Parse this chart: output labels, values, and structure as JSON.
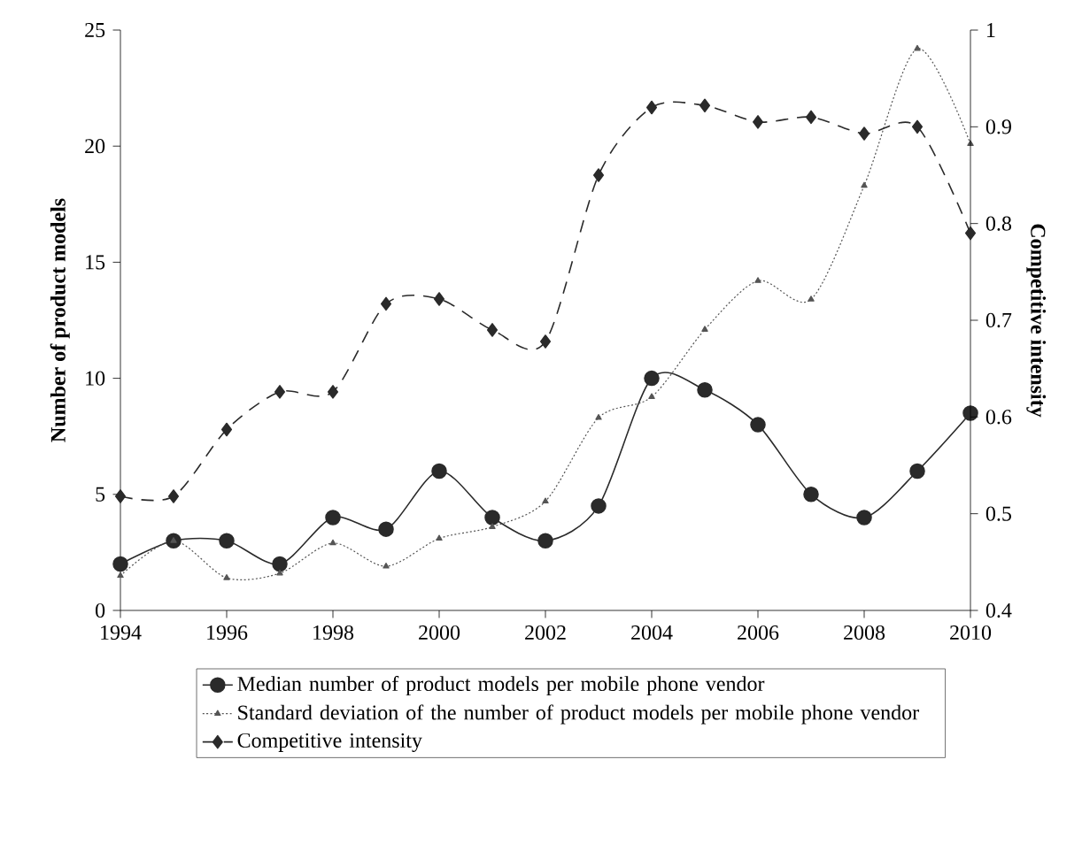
{
  "chart_data": {
    "type": "line",
    "ylabel": "Number of product models",
    "y2label": "Competitive intensity",
    "x": [
      1994,
      1995,
      1996,
      1997,
      1998,
      1999,
      2000,
      2001,
      2002,
      2003,
      2004,
      2005,
      2006,
      2007,
      2008,
      2009,
      2010
    ],
    "xlim": [
      1994,
      2010
    ],
    "xticks": [
      1994,
      1996,
      1998,
      2000,
      2002,
      2004,
      2006,
      2008,
      2010
    ],
    "ylim": [
      0,
      25
    ],
    "yticks": [
      0,
      5,
      10,
      15,
      20,
      25
    ],
    "y2lim": [
      0.4,
      1
    ],
    "y2ticks": [
      0.4,
      0.5,
      0.6,
      0.7,
      0.8,
      0.9,
      1
    ],
    "legend": "bottom",
    "series": [
      {
        "name": "Median number of product models per mobile phone vendor",
        "color": "#2a2a2a",
        "marker": "circle",
        "line_style": "solid",
        "values": [
          2,
          3,
          3,
          2,
          4,
          3.5,
          6,
          4,
          3,
          4.5,
          10,
          9.5,
          8,
          5,
          4,
          6,
          8.5
        ]
      },
      {
        "name": "Standard deviation of the number of product models per mobile phone vendor",
        "color": "#555555",
        "marker": "triangle",
        "line_style": "dotted",
        "values": [
          1.5,
          3,
          1.4,
          1.6,
          2.9,
          1.9,
          3.1,
          3.6,
          4.7,
          8.3,
          9.2,
          12.1,
          14.2,
          13.4,
          18.3,
          24.2,
          20.1
        ]
      },
      {
        "name": "Competitive intensity",
        "color": "#2a2a2a",
        "marker": "diamond",
        "line_style": "dashed",
        "axis": "y2",
        "values": [
          0.518,
          0.518,
          0.587,
          0.626,
          0.626,
          0.717,
          0.722,
          0.69,
          0.678,
          0.85,
          0.92,
          0.922,
          0.905,
          0.91,
          0.893,
          0.9,
          0.79
        ]
      }
    ]
  }
}
